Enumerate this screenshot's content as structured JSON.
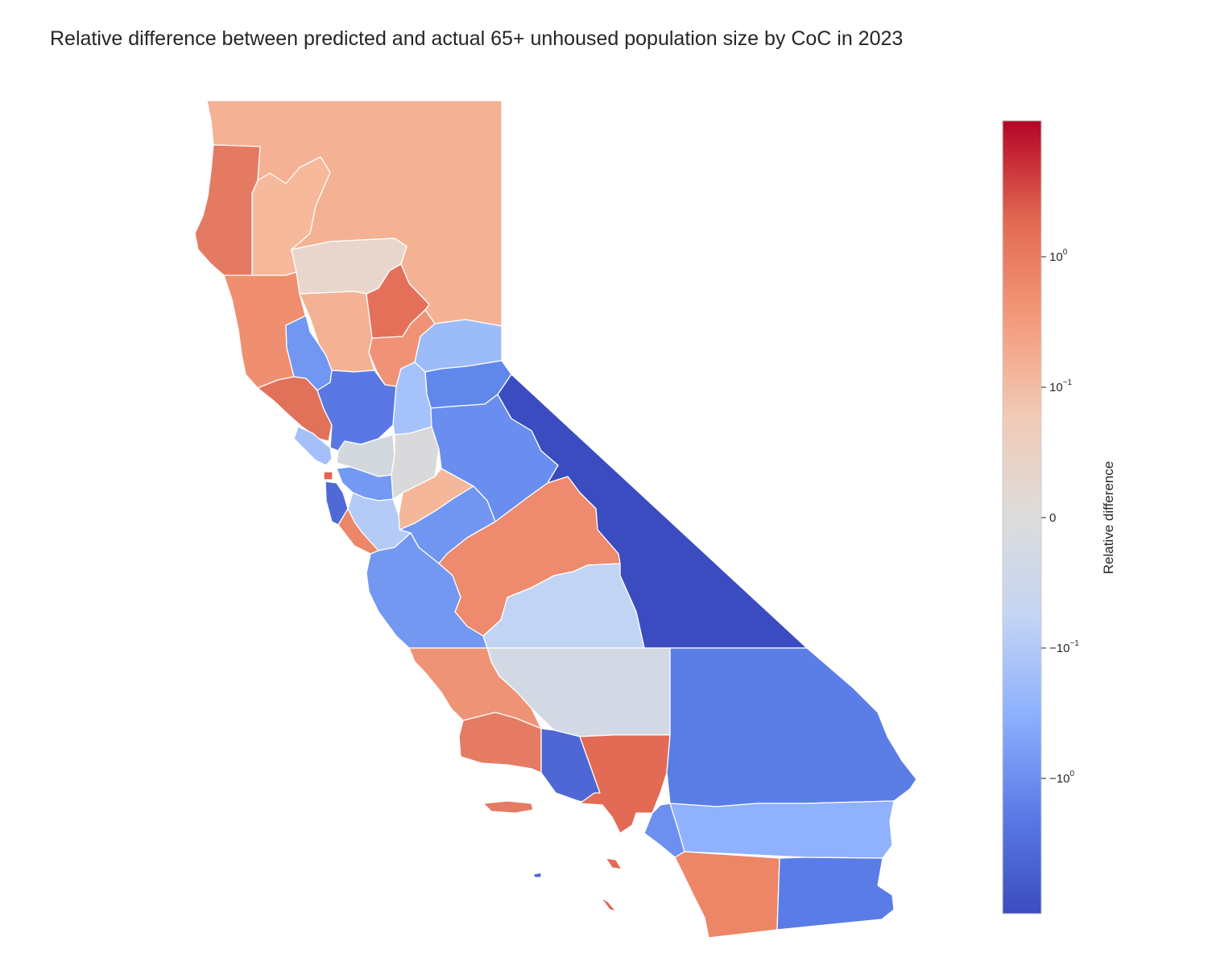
{
  "title": "Relative difference between predicted and actual 65+ unhoused population size by CoC in 2023",
  "colorbar": {
    "label": "Relative difference",
    "scale": "symlog",
    "colormap": "coolwarm",
    "ticks": [
      {
        "value": 1,
        "base": "10",
        "exp": "0"
      },
      {
        "value": 0.1,
        "base": "10",
        "exp": "−1"
      },
      {
        "value": 0,
        "base": "0",
        "exp": ""
      },
      {
        "value": -0.1,
        "base": "−10",
        "exp": "−1"
      },
      {
        "value": -1,
        "base": "−10",
        "exp": "0"
      }
    ],
    "gradient_stops": [
      "#3b4cc0",
      "#5b7be6",
      "#8db0fe",
      "#c4d5f3",
      "#dddcdc",
      "#f2cbb7",
      "#f49a7b",
      "#e26952",
      "#b40426"
    ]
  },
  "regions": [
    {
      "name": "north-interior",
      "color": "#f4b193"
    },
    {
      "name": "del-norte-humboldt",
      "color": "#e57a62"
    },
    {
      "name": "trinity",
      "color": "#f6b99b"
    },
    {
      "name": "shasta",
      "color": "#e8d6cc"
    },
    {
      "name": "mendocino",
      "color": "#ef8f70"
    },
    {
      "name": "tehama-glenn",
      "color": "#f5b193"
    },
    {
      "name": "butte",
      "color": "#e5705a"
    },
    {
      "name": "yuba-sutter",
      "color": "#ef9275"
    },
    {
      "name": "lake-colusa",
      "color": "#7297f3"
    },
    {
      "name": "sonoma",
      "color": "#e2715a"
    },
    {
      "name": "yolo-sacramento",
      "color": "#5a78e4"
    },
    {
      "name": "nevada-placer",
      "color": "#9bbcf9"
    },
    {
      "name": "el-dorado",
      "color": "#6088eb"
    },
    {
      "name": "amador-calaveras",
      "color": "#a5c2fb"
    },
    {
      "name": "marin",
      "color": "#a4c0fa"
    },
    {
      "name": "solano-contra-costa",
      "color": "#d3d8df"
    },
    {
      "name": "san-joaquin",
      "color": "#d9d9db"
    },
    {
      "name": "stanislaus",
      "color": "#f4b799"
    },
    {
      "name": "sf",
      "color": "#e36450"
    },
    {
      "name": "san-mateo",
      "color": "#4f6ad6"
    },
    {
      "name": "alameda",
      "color": "#7399f3"
    },
    {
      "name": "santa-clara",
      "color": "#b4cbf7"
    },
    {
      "name": "santa-cruz",
      "color": "#ec8669"
    },
    {
      "name": "mono-tuolumne",
      "color": "#6a8eef"
    },
    {
      "name": "merced",
      "color": "#7096f1"
    },
    {
      "name": "madera",
      "color": "#6b90ef"
    },
    {
      "name": "inyo",
      "color": "#3b4cc0"
    },
    {
      "name": "fresno",
      "color": "#ee8a6d"
    },
    {
      "name": "monterey-san-benito",
      "color": "#7398f2"
    },
    {
      "name": "tulare",
      "color": "#c2d4f4"
    },
    {
      "name": "kern",
      "color": "#d2d9e4"
    },
    {
      "name": "san-luis-obispo",
      "color": "#ef9376"
    },
    {
      "name": "santa-barbara",
      "color": "#e57b63"
    },
    {
      "name": "ventura",
      "color": "#4f67d4"
    },
    {
      "name": "los-angeles",
      "color": "#e36a55"
    },
    {
      "name": "san-bernardino",
      "color": "#5b7ee6"
    },
    {
      "name": "orange",
      "color": "#6c8ff0"
    },
    {
      "name": "riverside",
      "color": "#8fb1fe"
    },
    {
      "name": "san-diego",
      "color": "#ed8567"
    },
    {
      "name": "imperial",
      "color": "#5a7ce6"
    }
  ]
}
